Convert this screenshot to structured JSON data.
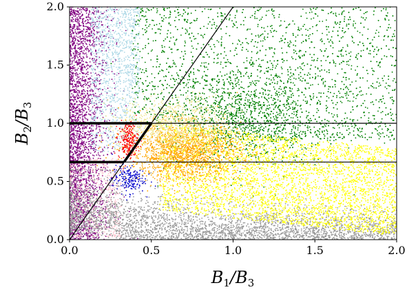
{
  "chart_data": {
    "type": "scatter",
    "title": "",
    "xlabel": {
      "B": "B",
      "sub1": "1",
      "slash": "/",
      "B2": "B",
      "sub2": "3"
    },
    "ylabel": {
      "B": "B",
      "sub1": "2",
      "slash": "/",
      "B2": "B",
      "sub2": "3"
    },
    "xlim": [
      0.0,
      2.0
    ],
    "ylim": [
      0.0,
      2.0
    ],
    "xticks": [
      0.0,
      0.5,
      1.0,
      1.5,
      2.0
    ],
    "yticks": [
      0.0,
      0.5,
      1.0,
      1.5,
      2.0
    ],
    "xtick_labels": [
      "0.0",
      "0.5",
      "1.0",
      "1.5",
      "2.0"
    ],
    "ytick_labels": [
      "0.0",
      "0.5",
      "1.0",
      "1.5",
      "2.0"
    ],
    "grid": false,
    "colors": {
      "purple": "#800080",
      "lightblue": "#add8e6",
      "green": "#008000",
      "pink": "#ffc0cb",
      "gray": "#999999",
      "red": "#ff0000",
      "blue": "#0000cc",
      "orange": "#ffa500",
      "yellow": "#ffff00",
      "khaki": "#f0e68c"
    },
    "lines": [
      {
        "name": "horizontal-1",
        "points": [
          [
            0,
            1.0
          ],
          [
            2.0,
            1.0
          ]
        ],
        "width": "thin"
      },
      {
        "name": "horizontal-2/3",
        "points": [
          [
            0,
            0.6667
          ],
          [
            2.0,
            0.6667
          ]
        ],
        "width": "thin"
      },
      {
        "name": "diagonal-y2x",
        "points": [
          [
            0,
            0
          ],
          [
            1.0,
            2.0
          ]
        ],
        "width": "thin"
      },
      {
        "name": "boundary-thick-top",
        "points": [
          [
            0,
            1.0
          ],
          [
            0.5,
            1.0
          ]
        ],
        "width": "thick"
      },
      {
        "name": "boundary-thick-bottom",
        "points": [
          [
            0,
            0.6667
          ],
          [
            0.3333,
            0.6667
          ]
        ],
        "width": "thick"
      },
      {
        "name": "boundary-thick-diag",
        "points": [
          [
            0.3333,
            0.6667
          ],
          [
            0.5,
            1.0
          ]
        ],
        "width": "thick"
      }
    ],
    "point_clouds": [
      {
        "name": "purple",
        "color_key": "purple",
        "region": "x<~0.25",
        "count": 2600
      },
      {
        "name": "lightblue",
        "color_key": "lightblue",
        "region": "0.15<x<0.45, 0.8<y<2.0",
        "count": 1300
      },
      {
        "name": "green",
        "color_key": "green",
        "region": "x>0.4, y>~0.6",
        "count": 4200
      },
      {
        "name": "pink",
        "color_key": "pink",
        "region": "x<0.3, y<0.7",
        "count": 500
      },
      {
        "name": "gray",
        "color_key": "gray",
        "region": "y<0.5",
        "count": 3600
      },
      {
        "name": "yellow",
        "color_key": "yellow",
        "region": "0.6<x<2.0, 0.2<y<1.0",
        "count": 3800
      },
      {
        "name": "orange",
        "color_key": "orange",
        "region": "0.4<x<1.0, 0.5<y<0.95",
        "count": 1600
      },
      {
        "name": "khaki",
        "color_key": "khaki",
        "region": "0.4<x<1.0, 0.8<y<1.2",
        "count": 900
      },
      {
        "name": "red",
        "color_key": "red",
        "region": "0.3<x<0.42, 0.7<y<1.0",
        "count": 220
      },
      {
        "name": "blue",
        "color_key": "blue",
        "region": "0.25<x<0.45, 0.4<y<0.65",
        "count": 180
      }
    ]
  }
}
